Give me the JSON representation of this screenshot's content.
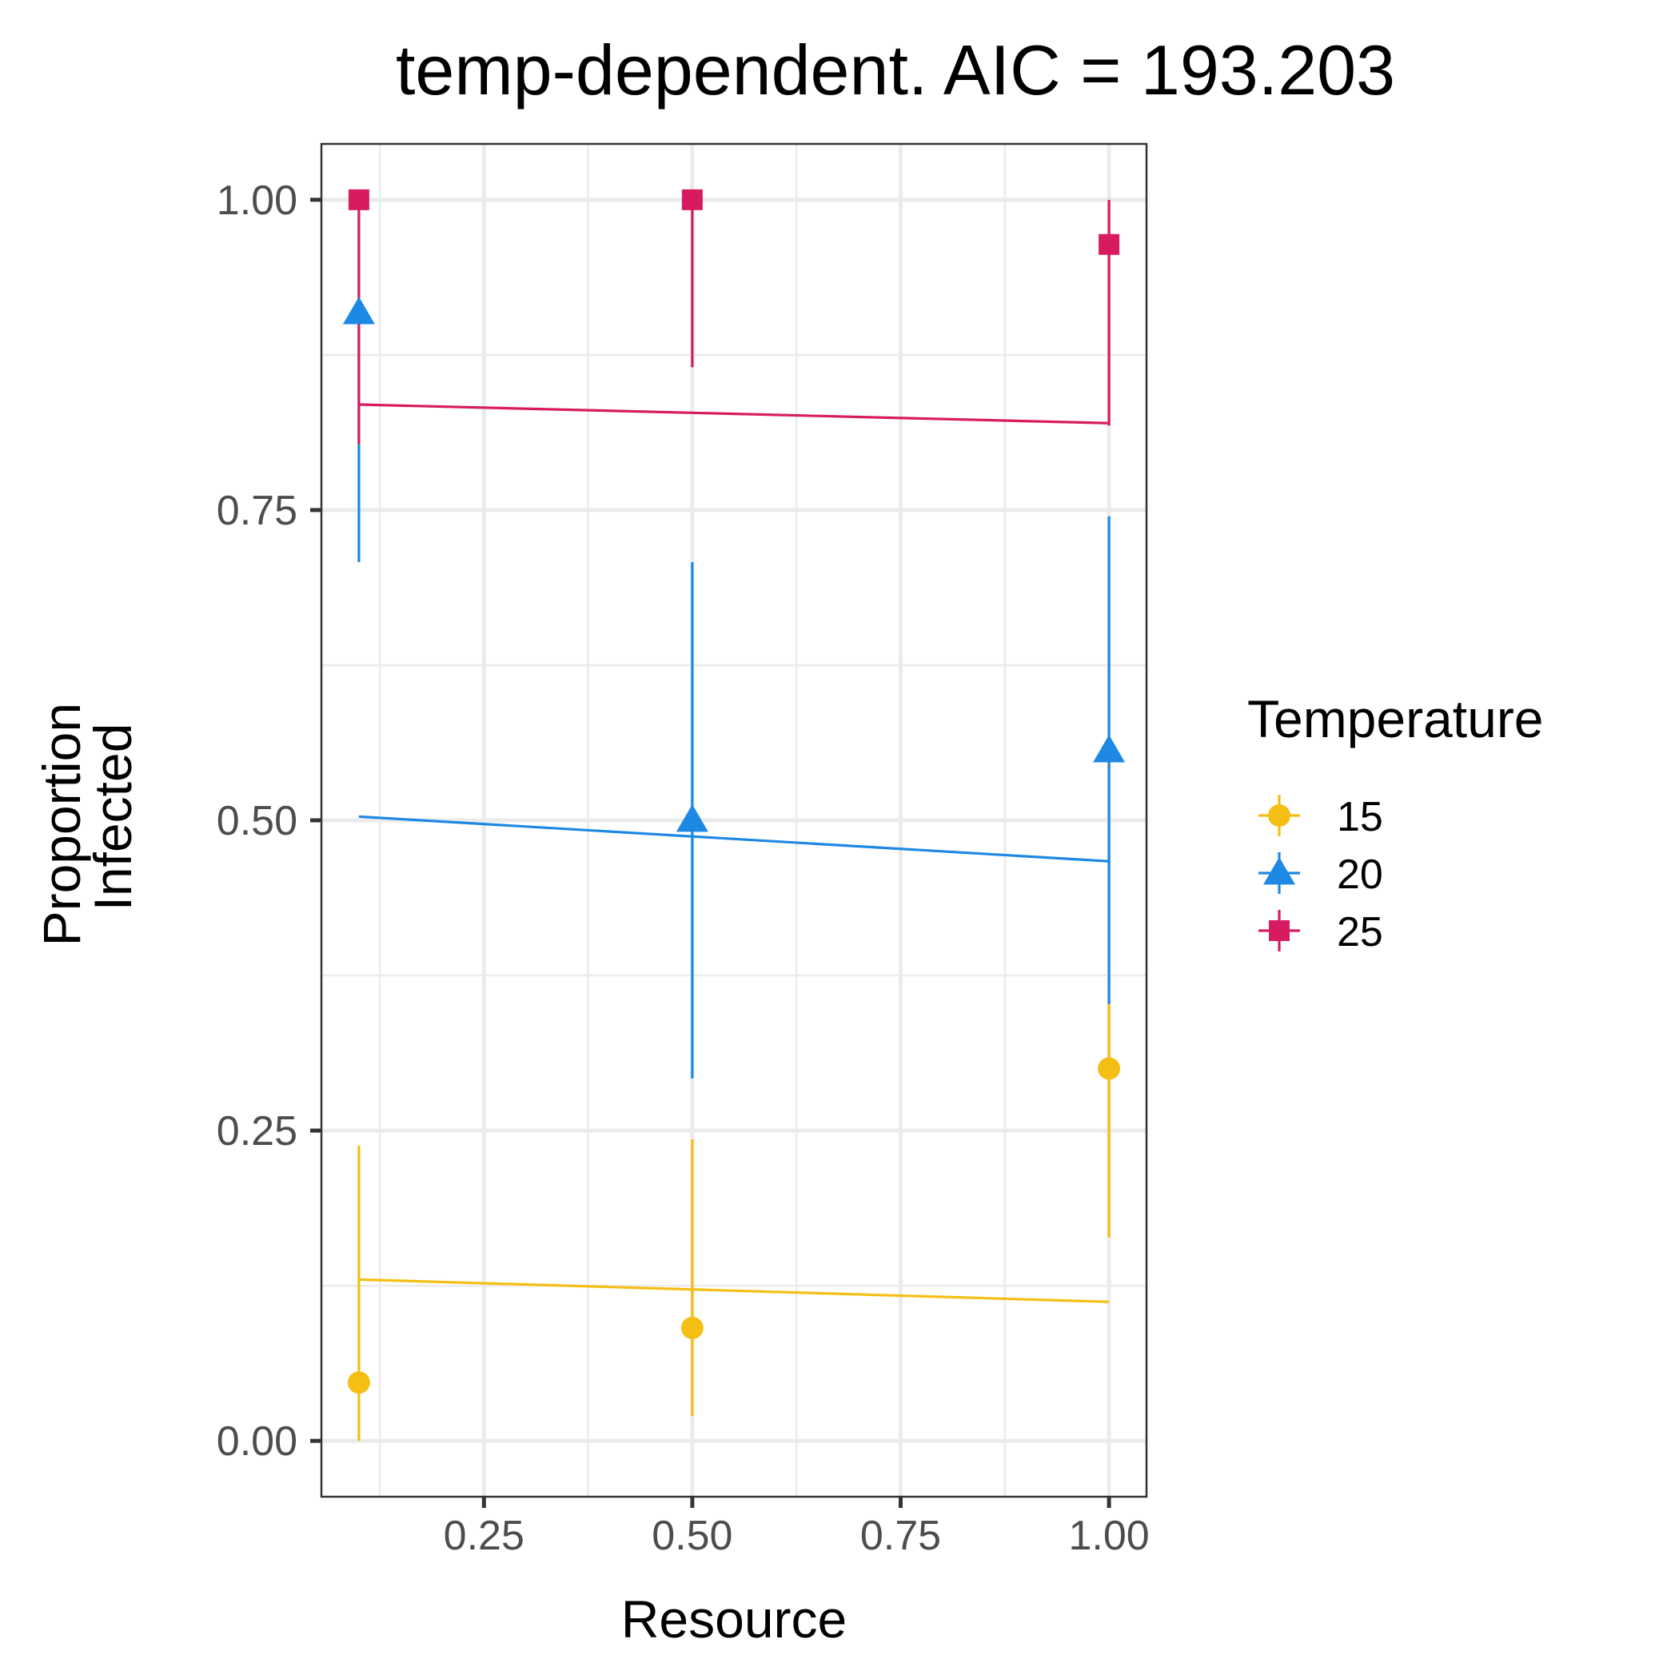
{
  "chart_data": {
    "type": "scatter",
    "title": "temp-dependent. AIC = 193.203",
    "xlabel": "Resource",
    "ylabel": [
      "Proportion",
      "Infected"
    ],
    "xlim": [
      0.055,
      1.045
    ],
    "ylim": [
      -0.045,
      1.045
    ],
    "x_ticks": [
      0.25,
      0.5,
      0.75,
      1.0
    ],
    "x_tick_labels": [
      "0.25",
      "0.50",
      "0.75",
      "1.00"
    ],
    "x_minor": [
      0.125,
      0.375,
      0.625,
      0.875
    ],
    "y_ticks": [
      0,
      0.25,
      0.5,
      0.75,
      1.0
    ],
    "y_tick_labels": [
      "0.00",
      "0.25",
      "0.50",
      "0.75",
      "1.00"
    ],
    "y_minor": [
      0.125,
      0.375,
      0.625,
      0.875
    ],
    "grid": true,
    "legend": {
      "title": "Temperature",
      "position": "right"
    },
    "series": [
      {
        "name": "15",
        "color": "#F5BE14",
        "marker": "circle",
        "points": [
          {
            "x": 0.1,
            "y": 0.047,
            "lo": 0.0,
            "hi": 0.238
          },
          {
            "x": 0.5,
            "y": 0.091,
            "lo": 0.02,
            "hi": 0.243
          },
          {
            "x": 1.0,
            "y": 0.3,
            "lo": 0.164,
            "hi": 0.353
          }
        ],
        "fit": [
          {
            "x": 0.1,
            "y": 0.13
          },
          {
            "x": 1.0,
            "y": 0.112
          }
        ]
      },
      {
        "name": "20",
        "color": "#1E88E5",
        "marker": "triangle",
        "points": [
          {
            "x": 0.1,
            "y": 0.909,
            "lo": 0.708,
            "hi": 1.0
          },
          {
            "x": 0.5,
            "y": 0.5,
            "lo": 0.292,
            "hi": 0.708
          },
          {
            "x": 1.0,
            "y": 0.556,
            "lo": 0.352,
            "hi": 0.745
          }
        ],
        "fit": [
          {
            "x": 0.1,
            "y": 0.503
          },
          {
            "x": 1.0,
            "y": 0.467
          }
        ]
      },
      {
        "name": "25",
        "color": "#D81B60",
        "marker": "square",
        "points": [
          {
            "x": 0.1,
            "y": 1.0,
            "lo": 0.803,
            "hi": 1.0
          },
          {
            "x": 0.5,
            "y": 1.0,
            "lo": 0.865,
            "hi": 1.0
          },
          {
            "x": 1.0,
            "y": 0.964,
            "lo": 0.818,
            "hi": 1.0
          }
        ],
        "fit": [
          {
            "x": 0.1,
            "y": 0.835
          },
          {
            "x": 1.0,
            "y": 0.82
          }
        ]
      }
    ]
  }
}
